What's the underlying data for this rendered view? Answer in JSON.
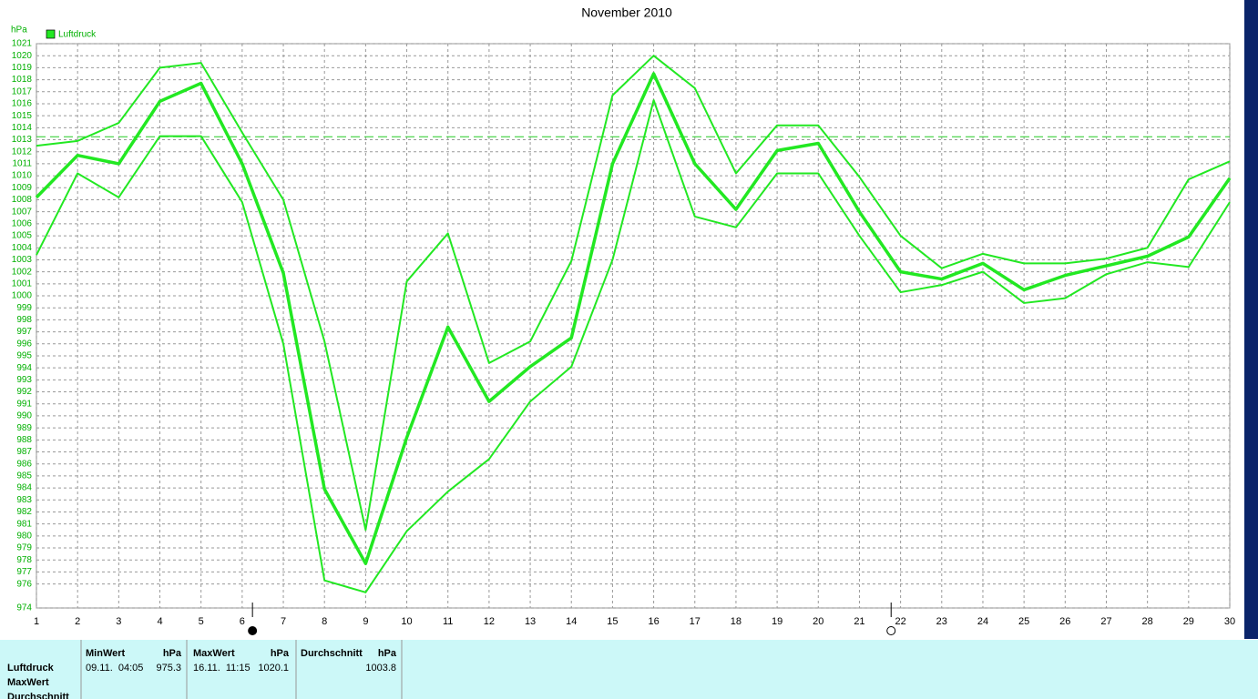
{
  "chart_data": {
    "type": "line",
    "title": "November 2010",
    "y_unit": "hPa",
    "x": [
      1,
      2,
      3,
      4,
      5,
      6,
      7,
      8,
      9,
      10,
      11,
      12,
      13,
      14,
      15,
      16,
      17,
      18,
      19,
      20,
      21,
      22,
      23,
      24,
      25,
      26,
      27,
      28,
      29,
      30
    ],
    "xlim": [
      1,
      30
    ],
    "xticks": [
      1,
      2,
      3,
      4,
      5,
      6,
      7,
      8,
      9,
      10,
      11,
      12,
      13,
      14,
      15,
      16,
      17,
      18,
      19,
      20,
      21,
      22,
      23,
      24,
      25,
      26,
      27,
      28,
      29,
      30
    ],
    "ylim": [
      974,
      1021
    ],
    "yticks": [
      1021,
      1020,
      1019,
      1018,
      1017,
      1016,
      1015,
      1014,
      1013,
      1012,
      1011,
      1010,
      1009,
      1008,
      1007,
      1006,
      1005,
      1004,
      1003,
      1002,
      1001,
      1000,
      999,
      998,
      997,
      996,
      995,
      994,
      993,
      992,
      991,
      990,
      989,
      988,
      987,
      986,
      985,
      984,
      983,
      982,
      981,
      980,
      979,
      978,
      977,
      976,
      974
    ],
    "grid": true,
    "reference_line": 1013.25,
    "series": [
      {
        "name": "Luftdruck",
        "color": "#22e822",
        "values": [
          1008.2,
          1011.7,
          1011.0,
          1016.2,
          1017.7,
          1011.0,
          1001.9,
          983.9,
          977.7,
          988.2,
          997.4,
          991.2,
          994.1,
          996.5,
          1011.0,
          1018.5,
          1011.0,
          1007.2,
          1012.1,
          1012.7,
          1007.0,
          1002.0,
          1001.4,
          1002.7,
          1000.5,
          1001.7,
          1002.5,
          1003.3,
          1004.9,
          1009.8
        ],
        "high": [
          1012.5,
          1012.9,
          1014.4,
          1019.0,
          1019.4,
          1013.6,
          1008.0,
          996.2,
          980.5,
          1001.2,
          1005.2,
          994.4,
          996.2,
          1002.9,
          1016.7,
          1020.0,
          1017.3,
          1010.2,
          1014.2,
          1014.2,
          1009.9,
          1005.0,
          1002.3,
          1003.5,
          1002.7,
          1002.7,
          1003.1,
          1004.0,
          1009.7,
          1011.2
        ],
        "low": [
          1003.4,
          1010.2,
          1008.2,
          1013.3,
          1013.3,
          1007.8,
          996.0,
          976.3,
          975.3,
          980.4,
          983.7,
          986.4,
          991.2,
          994.1,
          1003.0,
          1016.3,
          1006.6,
          1005.7,
          1010.2,
          1010.2,
          1005.0,
          1000.3,
          1000.9,
          1002.0,
          999.4,
          999.8,
          1001.8,
          1002.8,
          1002.4,
          1007.8
        ]
      }
    ],
    "moon_phases": [
      {
        "x": 6.25,
        "phase": "new"
      },
      {
        "x": 21.77,
        "phase": "full"
      }
    ]
  },
  "summary_table": {
    "row_labels": [
      "Luftdruck",
      "MaxWert",
      "Durchschnitt"
    ],
    "columns": [
      {
        "header": "MinWert",
        "unit": "hPa",
        "time": "09.11.  04:05",
        "value": 975.3
      },
      {
        "header": "MaxWert",
        "unit": "hPa",
        "time": "16.11.  11:15",
        "value": 1020.1
      },
      {
        "header": "Durchschnitt",
        "unit": "hPa",
        "value": 1003.8
      }
    ]
  }
}
